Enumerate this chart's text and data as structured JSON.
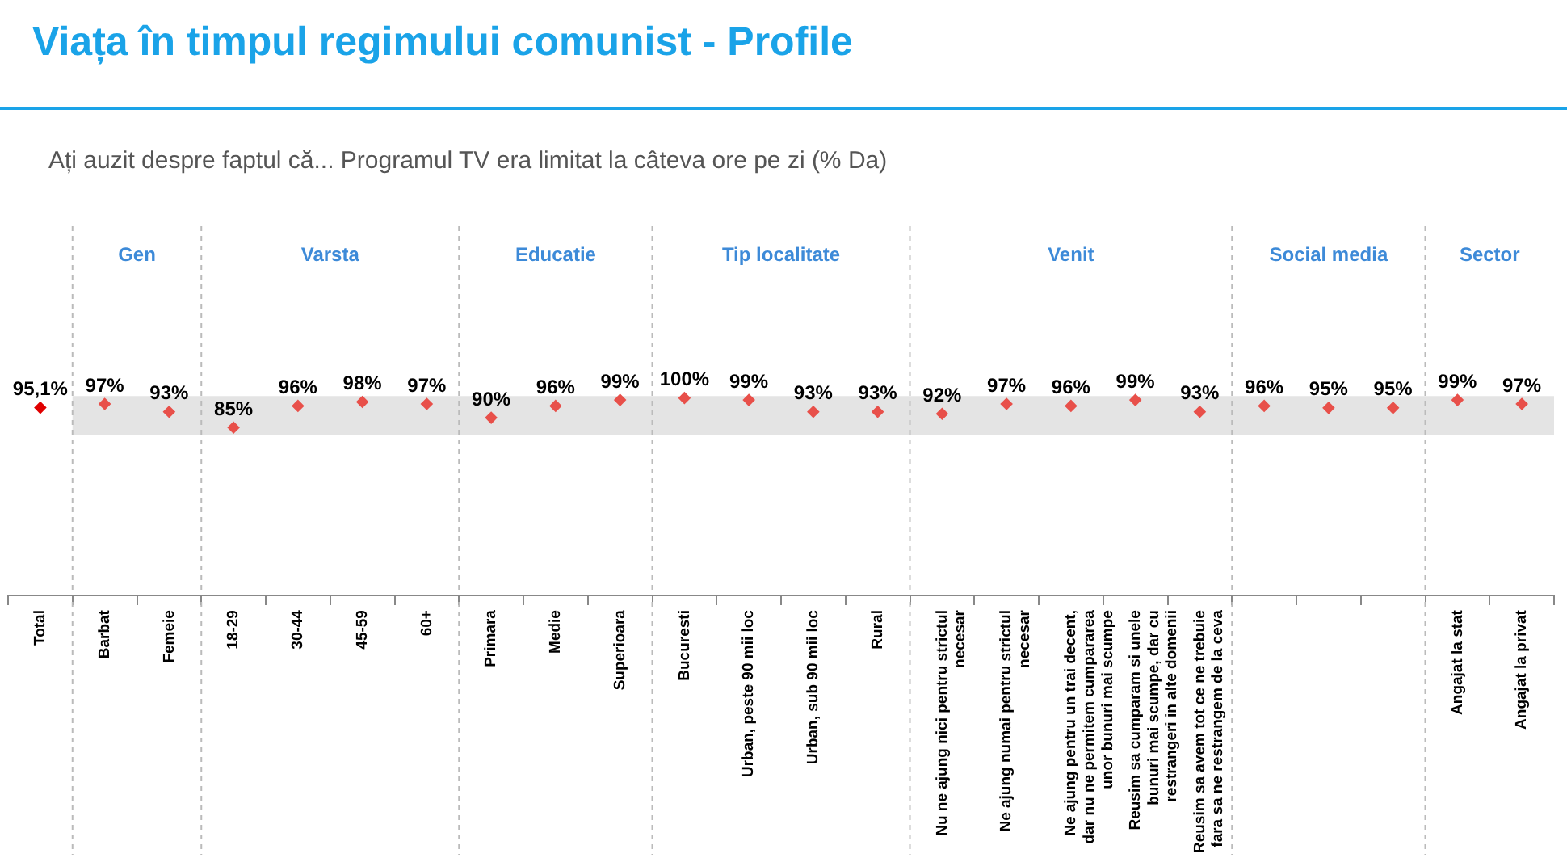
{
  "chart_data": {
    "type": "scatter",
    "title": "Viața în timpul regimului comunist - Profile",
    "subtitle": "Ați auzit despre faptul că... Programul TV era limitat la câteva ore pe zi (% Da)",
    "categories": [
      "Total",
      "Barbat",
      "Femeie",
      "18-29",
      "30-44",
      "45-59",
      "60+",
      "Primara",
      "Medie",
      "Superioara",
      "Bucuresti",
      "Urban, peste 90 mii loc",
      "Urban, sub 90 mii loc",
      "Rural",
      "Nu ne ajung nici pentru strictul necesar",
      "Ne ajung numai pentru strictul necesar",
      "Ne ajung pentru un trai decent, dar nu ne permitem cumpararea unor bunuri mai scumpe",
      "Reusim sa cumparam si unele bunuri mai scumpe, dar cu restrangeri in alte domenii",
      "Reusim sa avem tot ce ne trebuie fara sa ne restrangem de la ceva",
      null,
      null,
      null,
      "Angajat la stat",
      "Angajat la privat"
    ],
    "values": [
      95.1,
      97,
      93,
      85,
      96,
      98,
      97,
      90,
      96,
      99,
      100,
      99,
      93,
      93,
      92,
      97,
      96,
      99,
      93,
      96,
      95,
      95,
      99,
      97
    ],
    "value_labels": [
      "95,1%",
      "97%",
      "93%",
      "85%",
      "96%",
      "98%",
      "97%",
      "90%",
      "96%",
      "99%",
      "100%",
      "99%",
      "93%",
      "93%",
      "92%",
      "97%",
      "96%",
      "99%",
      "93%",
      "96%",
      "95%",
      "95%",
      "99%",
      "97%"
    ],
    "colors": [
      "#e00000",
      "#e8504a",
      "#e8504a",
      "#e8504a",
      "#e8504a",
      "#e8504a",
      "#e8504a",
      "#e8504a",
      "#e8504a",
      "#e8504a",
      "#e8504a",
      "#e8504a",
      "#e8504a",
      "#e8504a",
      "#e8504a",
      "#e8504a",
      "#e8504a",
      "#e8504a",
      "#e8504a",
      "#e8504a",
      "#e8504a",
      "#e8504a",
      "#e8504a",
      "#e8504a"
    ],
    "marker": "diamond",
    "ylim": [
      0,
      187
    ],
    "tick_labels": "x",
    "legend": false,
    "grid": false,
    "bands": [
      {
        "axis": "y",
        "from": 81,
        "to": 101,
        "color": "#e4e4e4"
      }
    ],
    "annotations": [
      "Gen",
      "Varsta",
      "Educatie",
      "Tip localitate",
      "Venit",
      "Social media",
      "Sector"
    ]
  }
}
